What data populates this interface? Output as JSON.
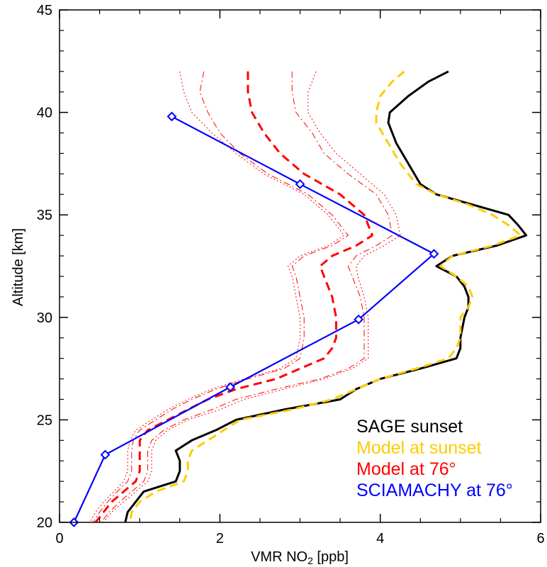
{
  "chart_data": {
    "type": "line",
    "xlabel": "VMR NO",
    "xlabel_sub": "2",
    "xlabel_unit": " [ppb]",
    "ylabel": "Altitude [km]",
    "xlim": [
      0,
      6
    ],
    "ylim": [
      20,
      45
    ],
    "x_ticks": [
      0,
      2,
      4,
      6
    ],
    "y_ticks": [
      20,
      25,
      30,
      35,
      40,
      45
    ],
    "grid": false,
    "legend_position": "bottom-right",
    "series": [
      {
        "name": "SAGE sunset",
        "color": "#000000",
        "style": "solid",
        "points": [
          [
            4.85,
            42.0
          ],
          [
            4.6,
            41.5
          ],
          [
            4.35,
            40.8
          ],
          [
            4.12,
            40.0
          ],
          [
            4.1,
            39.5
          ],
          [
            4.2,
            38.5
          ],
          [
            4.35,
            37.5
          ],
          [
            4.5,
            36.5
          ],
          [
            4.7,
            36.0
          ],
          [
            5.15,
            35.5
          ],
          [
            5.6,
            35.0
          ],
          [
            5.72,
            34.5
          ],
          [
            5.82,
            34.0
          ],
          [
            5.45,
            33.5
          ],
          [
            4.9,
            33.0
          ],
          [
            4.7,
            32.5
          ],
          [
            4.95,
            32.0
          ],
          [
            5.05,
            31.5
          ],
          [
            5.1,
            31.0
          ],
          [
            5.1,
            30.5
          ],
          [
            5.05,
            30.0
          ],
          [
            5.0,
            29.0
          ],
          [
            5.0,
            28.5
          ],
          [
            4.95,
            28.0
          ],
          [
            4.5,
            27.5
          ],
          [
            4.0,
            27.0
          ],
          [
            3.7,
            26.5
          ],
          [
            3.5,
            26.0
          ],
          [
            2.8,
            25.5
          ],
          [
            2.2,
            25.0
          ],
          [
            1.95,
            24.5
          ],
          [
            1.65,
            24.0
          ],
          [
            1.45,
            23.5
          ],
          [
            1.5,
            23.0
          ],
          [
            1.5,
            22.5
          ],
          [
            1.45,
            22.0
          ],
          [
            1.05,
            21.5
          ],
          [
            0.95,
            21.0
          ],
          [
            0.85,
            20.5
          ],
          [
            0.82,
            20.0
          ]
        ]
      },
      {
        "name": "Model at sunset",
        "color": "#ffcc00",
        "style": "dashed",
        "points": [
          [
            4.3,
            42.0
          ],
          [
            4.15,
            41.5
          ],
          [
            4.0,
            40.8
          ],
          [
            3.95,
            40.0
          ],
          [
            3.95,
            39.5
          ],
          [
            4.1,
            38.5
          ],
          [
            4.25,
            37.5
          ],
          [
            4.45,
            36.5
          ],
          [
            4.7,
            36.0
          ],
          [
            5.1,
            35.5
          ],
          [
            5.4,
            35.0
          ],
          [
            5.6,
            34.5
          ],
          [
            5.75,
            34.0
          ],
          [
            5.4,
            33.5
          ],
          [
            4.9,
            33.0
          ],
          [
            4.75,
            32.5
          ],
          [
            4.95,
            32.0
          ],
          [
            5.1,
            31.5
          ],
          [
            5.15,
            31.0
          ],
          [
            5.1,
            30.5
          ],
          [
            5.0,
            30.0
          ],
          [
            5.0,
            29.0
          ],
          [
            4.95,
            28.5
          ],
          [
            4.85,
            28.0
          ],
          [
            4.45,
            27.5
          ],
          [
            4.0,
            27.0
          ],
          [
            3.7,
            26.5
          ],
          [
            3.4,
            26.0
          ],
          [
            2.9,
            25.5
          ],
          [
            2.25,
            25.0
          ],
          [
            2.05,
            24.5
          ],
          [
            1.85,
            24.0
          ],
          [
            1.65,
            23.5
          ],
          [
            1.6,
            23.0
          ],
          [
            1.6,
            22.5
          ],
          [
            1.55,
            22.0
          ],
          [
            1.2,
            21.5
          ],
          [
            1.0,
            21.0
          ],
          [
            0.9,
            20.5
          ],
          [
            0.88,
            20.0
          ]
        ]
      },
      {
        "name": "Model at 76°",
        "color": "#ff0000",
        "style": "dashed",
        "points": [
          [
            2.35,
            42.0
          ],
          [
            2.35,
            41.0
          ],
          [
            2.4,
            40.0
          ],
          [
            2.55,
            39.0
          ],
          [
            2.75,
            38.0
          ],
          [
            3.05,
            37.0
          ],
          [
            3.5,
            36.0
          ],
          [
            3.8,
            35.0
          ],
          [
            3.9,
            34.0
          ],
          [
            3.7,
            33.5
          ],
          [
            3.4,
            33.0
          ],
          [
            3.25,
            32.5
          ],
          [
            3.3,
            32.0
          ],
          [
            3.4,
            31.0
          ],
          [
            3.45,
            30.0
          ],
          [
            3.45,
            29.0
          ],
          [
            3.4,
            28.5
          ],
          [
            3.3,
            28.0
          ],
          [
            3.0,
            27.5
          ],
          [
            2.7,
            27.0
          ],
          [
            2.2,
            26.5
          ],
          [
            1.85,
            26.0
          ],
          [
            1.6,
            25.5
          ],
          [
            1.35,
            25.0
          ],
          [
            1.1,
            24.5
          ],
          [
            1.0,
            24.0
          ],
          [
            1.0,
            23.5
          ],
          [
            1.0,
            22.5
          ],
          [
            0.95,
            22.0
          ],
          [
            0.8,
            21.5
          ],
          [
            0.65,
            21.0
          ],
          [
            0.55,
            20.5
          ],
          [
            0.45,
            20.0
          ]
        ]
      },
      {
        "name": "",
        "color": "#ff0000",
        "style": "dashdot-thin",
        "points": [
          [
            2.9,
            42.0
          ],
          [
            2.9,
            41.0
          ],
          [
            2.95,
            40.0
          ],
          [
            3.15,
            39.0
          ],
          [
            3.3,
            38.0
          ],
          [
            3.6,
            37.0
          ],
          [
            3.95,
            36.0
          ],
          [
            4.1,
            35.0
          ],
          [
            4.15,
            34.0
          ],
          [
            3.95,
            33.5
          ],
          [
            3.7,
            33.0
          ],
          [
            3.6,
            32.5
          ],
          [
            3.65,
            32.0
          ],
          [
            3.75,
            31.0
          ],
          [
            3.8,
            30.0
          ],
          [
            3.8,
            29.0
          ],
          [
            3.8,
            28.0
          ],
          [
            3.6,
            27.5
          ],
          [
            3.25,
            27.0
          ],
          [
            2.7,
            26.5
          ],
          [
            2.2,
            26.0
          ],
          [
            1.9,
            25.5
          ],
          [
            1.55,
            25.0
          ],
          [
            1.3,
            24.5
          ],
          [
            1.15,
            24.0
          ],
          [
            1.1,
            23.5
          ],
          [
            1.1,
            22.5
          ],
          [
            1.05,
            22.0
          ],
          [
            0.9,
            21.5
          ],
          [
            0.75,
            21.0
          ],
          [
            0.62,
            20.5
          ],
          [
            0.52,
            20.0
          ]
        ]
      },
      {
        "name": "",
        "color": "#ff0000",
        "style": "dashdot-thin",
        "points": [
          [
            1.8,
            42.0
          ],
          [
            1.75,
            41.0
          ],
          [
            1.85,
            40.0
          ],
          [
            2.0,
            39.0
          ],
          [
            2.25,
            38.0
          ],
          [
            2.6,
            37.0
          ],
          [
            3.1,
            36.0
          ],
          [
            3.4,
            35.0
          ],
          [
            3.6,
            34.0
          ],
          [
            3.4,
            33.5
          ],
          [
            3.05,
            33.0
          ],
          [
            2.9,
            32.5
          ],
          [
            2.95,
            32.0
          ],
          [
            3.0,
            31.0
          ],
          [
            3.05,
            30.0
          ],
          [
            3.05,
            29.0
          ],
          [
            3.0,
            28.0
          ],
          [
            2.8,
            27.5
          ],
          [
            2.35,
            27.0
          ],
          [
            1.95,
            26.5
          ],
          [
            1.65,
            26.0
          ],
          [
            1.4,
            25.5
          ],
          [
            1.2,
            25.0
          ],
          [
            1.0,
            24.5
          ],
          [
            0.92,
            24.0
          ],
          [
            0.9,
            23.5
          ],
          [
            0.9,
            22.5
          ],
          [
            0.85,
            22.0
          ],
          [
            0.72,
            21.5
          ],
          [
            0.6,
            21.0
          ],
          [
            0.5,
            20.5
          ],
          [
            0.42,
            20.0
          ]
        ]
      },
      {
        "name": "",
        "color": "#ff0000",
        "style": "dotted-thin",
        "points": [
          [
            3.2,
            42.0
          ],
          [
            3.1,
            41.0
          ],
          [
            3.1,
            40.0
          ],
          [
            3.25,
            39.0
          ],
          [
            3.45,
            38.0
          ],
          [
            3.75,
            37.0
          ],
          [
            4.05,
            36.0
          ],
          [
            4.2,
            35.0
          ],
          [
            4.25,
            34.0
          ],
          [
            4.05,
            33.5
          ],
          [
            3.8,
            33.0
          ],
          [
            3.7,
            32.5
          ],
          [
            3.72,
            32.0
          ],
          [
            3.8,
            31.0
          ],
          [
            3.85,
            30.0
          ],
          [
            3.85,
            29.0
          ],
          [
            3.85,
            28.0
          ],
          [
            3.65,
            27.5
          ],
          [
            3.3,
            27.0
          ],
          [
            2.8,
            26.5
          ],
          [
            2.3,
            26.0
          ],
          [
            2.0,
            25.5
          ],
          [
            1.6,
            25.0
          ],
          [
            1.35,
            24.5
          ],
          [
            1.2,
            24.0
          ],
          [
            1.15,
            23.5
          ],
          [
            1.15,
            22.5
          ],
          [
            1.1,
            22.0
          ],
          [
            0.95,
            21.5
          ],
          [
            0.8,
            21.0
          ],
          [
            0.65,
            20.5
          ],
          [
            0.55,
            20.0
          ]
        ]
      },
      {
        "name": "",
        "color": "#ff0000",
        "style": "dotted-thin",
        "points": [
          [
            1.5,
            42.0
          ],
          [
            1.55,
            41.0
          ],
          [
            1.65,
            40.0
          ],
          [
            1.9,
            39.0
          ],
          [
            2.2,
            38.0
          ],
          [
            2.55,
            37.0
          ],
          [
            3.05,
            36.0
          ],
          [
            3.35,
            35.0
          ],
          [
            3.55,
            34.0
          ],
          [
            3.35,
            33.5
          ],
          [
            3.0,
            33.0
          ],
          [
            2.85,
            32.5
          ],
          [
            2.9,
            32.0
          ],
          [
            2.95,
            31.0
          ],
          [
            3.0,
            30.0
          ],
          [
            3.0,
            29.0
          ],
          [
            2.95,
            28.0
          ],
          [
            2.75,
            27.5
          ],
          [
            2.3,
            27.0
          ],
          [
            1.9,
            26.5
          ],
          [
            1.6,
            26.0
          ],
          [
            1.35,
            25.5
          ],
          [
            1.15,
            25.0
          ],
          [
            0.95,
            24.5
          ],
          [
            0.88,
            24.0
          ],
          [
            0.85,
            23.5
          ],
          [
            0.85,
            22.5
          ],
          [
            0.8,
            22.0
          ],
          [
            0.68,
            21.5
          ],
          [
            0.55,
            21.0
          ],
          [
            0.45,
            20.5
          ],
          [
            0.38,
            20.0
          ]
        ]
      },
      {
        "name": "SCIAMACHY at 76°",
        "color": "#0000ff",
        "style": "solid-markers",
        "points": [
          [
            0.18,
            20.0
          ],
          [
            0.57,
            23.3
          ],
          [
            2.13,
            26.6
          ],
          [
            3.73,
            29.9
          ],
          [
            4.67,
            33.1
          ],
          [
            3.0,
            36.5
          ],
          [
            1.4,
            39.8
          ]
        ]
      }
    ],
    "legend": [
      {
        "label": "SAGE sunset",
        "color": "#000000"
      },
      {
        "label": "Model at sunset",
        "color": "#ffcc00"
      },
      {
        "label": "Model at 76°",
        "color": "#ff0000"
      },
      {
        "label": "SCIAMACHY at 76°",
        "color": "#0000ff"
      }
    ]
  }
}
